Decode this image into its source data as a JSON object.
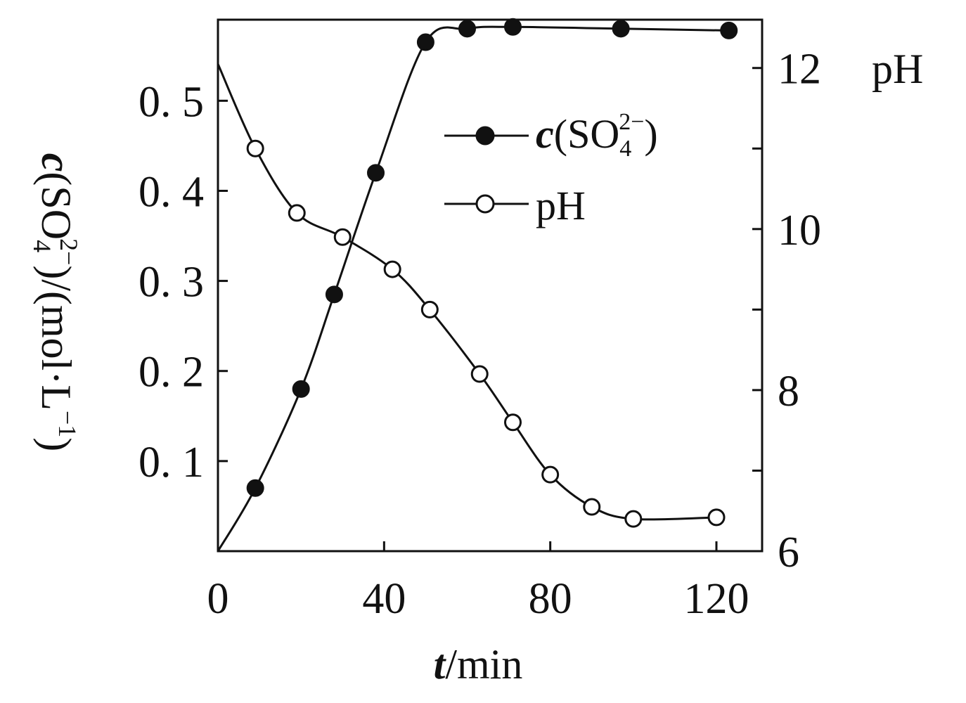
{
  "chart_data": {
    "type": "line",
    "xlabel": {
      "italic": "t",
      "rest": "/min"
    },
    "ylabel_left": {
      "italic": "c",
      "rest1": "(SO",
      "sub": "4",
      "sup": "2−",
      "rest2": ")/(mol·L",
      "sup2": "−1",
      "rest3": ")"
    },
    "ylabel_right": "pH",
    "x_ticks": [
      "0",
      "40",
      "80",
      "120"
    ],
    "x_tick_values": [
      0,
      40,
      80,
      120
    ],
    "xlim": [
      0,
      131
    ],
    "y_left_ticks": [
      "0. 1",
      "0. 2",
      "0. 3",
      "0. 4",
      "0. 5"
    ],
    "y_left_tick_values": [
      0.1,
      0.2,
      0.3,
      0.4,
      0.5
    ],
    "ylim_left": [
      0,
      0.59
    ],
    "y_right_ticks": [
      "6",
      "8",
      "10",
      "12"
    ],
    "y_right_tick_values": [
      6,
      8,
      10,
      12
    ],
    "ylim_right": [
      6,
      12.6
    ],
    "legend_position": "top-right",
    "series": [
      {
        "name": "c(SO₄²⁻)",
        "legend": {
          "italic": "c",
          "rest1": "(SO",
          "sub": "4",
          "sup": "2−",
          "rest2": ")"
        },
        "axis": "left",
        "marker": "filled-circle",
        "x": [
          0,
          9,
          20,
          28,
          38,
          50,
          60,
          71,
          97,
          123
        ],
        "y": [
          0.0,
          0.07,
          0.18,
          0.285,
          0.42,
          0.565,
          0.58,
          0.582,
          0.58,
          0.578
        ],
        "markers_x": [
          9,
          20,
          28,
          38,
          50,
          60,
          71,
          97,
          123
        ],
        "markers_y": [
          0.07,
          0.18,
          0.285,
          0.42,
          0.565,
          0.58,
          0.582,
          0.58,
          0.578
        ]
      },
      {
        "name": "pH",
        "legend": {
          "text": "pH"
        },
        "axis": "right",
        "marker": "open-circle",
        "x": [
          0,
          9,
          19,
          30,
          42,
          51,
          63,
          71,
          80,
          90,
          100,
          120
        ],
        "y": [
          12.05,
          11.0,
          10.2,
          9.9,
          9.5,
          9.0,
          8.2,
          7.6,
          6.95,
          6.55,
          6.4,
          6.42
        ],
        "markers_x": [
          9,
          19,
          30,
          42,
          51,
          63,
          71,
          80,
          90,
          100,
          120
        ],
        "markers_y": [
          11.0,
          10.2,
          9.9,
          9.5,
          9.0,
          8.2,
          7.6,
          6.95,
          6.55,
          6.4,
          6.42
        ]
      }
    ]
  }
}
